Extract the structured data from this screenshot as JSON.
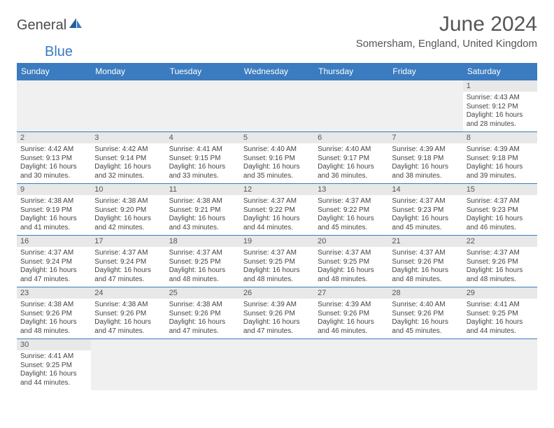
{
  "logo": {
    "part1": "General",
    "part2": "Blue"
  },
  "title": "June 2024",
  "location": "Somersham, England, United Kingdom",
  "colors": {
    "header_bg": "#3b7bbf",
    "header_text": "#ffffff",
    "daynum_bg": "#e8e8e8",
    "empty_bg": "#f0f0f0",
    "border": "#3b7bbf",
    "text": "#444444"
  },
  "weekdays": [
    "Sunday",
    "Monday",
    "Tuesday",
    "Wednesday",
    "Thursday",
    "Friday",
    "Saturday"
  ],
  "first_weekday_index": 6,
  "days": [
    {
      "n": 1,
      "sunrise": "4:43 AM",
      "sunset": "9:12 PM",
      "daylight": "16 hours and 28 minutes."
    },
    {
      "n": 2,
      "sunrise": "4:42 AM",
      "sunset": "9:13 PM",
      "daylight": "16 hours and 30 minutes."
    },
    {
      "n": 3,
      "sunrise": "4:42 AM",
      "sunset": "9:14 PM",
      "daylight": "16 hours and 32 minutes."
    },
    {
      "n": 4,
      "sunrise": "4:41 AM",
      "sunset": "9:15 PM",
      "daylight": "16 hours and 33 minutes."
    },
    {
      "n": 5,
      "sunrise": "4:40 AM",
      "sunset": "9:16 PM",
      "daylight": "16 hours and 35 minutes."
    },
    {
      "n": 6,
      "sunrise": "4:40 AM",
      "sunset": "9:17 PM",
      "daylight": "16 hours and 36 minutes."
    },
    {
      "n": 7,
      "sunrise": "4:39 AM",
      "sunset": "9:18 PM",
      "daylight": "16 hours and 38 minutes."
    },
    {
      "n": 8,
      "sunrise": "4:39 AM",
      "sunset": "9:18 PM",
      "daylight": "16 hours and 39 minutes."
    },
    {
      "n": 9,
      "sunrise": "4:38 AM",
      "sunset": "9:19 PM",
      "daylight": "16 hours and 41 minutes."
    },
    {
      "n": 10,
      "sunrise": "4:38 AM",
      "sunset": "9:20 PM",
      "daylight": "16 hours and 42 minutes."
    },
    {
      "n": 11,
      "sunrise": "4:38 AM",
      "sunset": "9:21 PM",
      "daylight": "16 hours and 43 minutes."
    },
    {
      "n": 12,
      "sunrise": "4:37 AM",
      "sunset": "9:22 PM",
      "daylight": "16 hours and 44 minutes."
    },
    {
      "n": 13,
      "sunrise": "4:37 AM",
      "sunset": "9:22 PM",
      "daylight": "16 hours and 45 minutes."
    },
    {
      "n": 14,
      "sunrise": "4:37 AM",
      "sunset": "9:23 PM",
      "daylight": "16 hours and 45 minutes."
    },
    {
      "n": 15,
      "sunrise": "4:37 AM",
      "sunset": "9:23 PM",
      "daylight": "16 hours and 46 minutes."
    },
    {
      "n": 16,
      "sunrise": "4:37 AM",
      "sunset": "9:24 PM",
      "daylight": "16 hours and 47 minutes."
    },
    {
      "n": 17,
      "sunrise": "4:37 AM",
      "sunset": "9:24 PM",
      "daylight": "16 hours and 47 minutes."
    },
    {
      "n": 18,
      "sunrise": "4:37 AM",
      "sunset": "9:25 PM",
      "daylight": "16 hours and 48 minutes."
    },
    {
      "n": 19,
      "sunrise": "4:37 AM",
      "sunset": "9:25 PM",
      "daylight": "16 hours and 48 minutes."
    },
    {
      "n": 20,
      "sunrise": "4:37 AM",
      "sunset": "9:25 PM",
      "daylight": "16 hours and 48 minutes."
    },
    {
      "n": 21,
      "sunrise": "4:37 AM",
      "sunset": "9:26 PM",
      "daylight": "16 hours and 48 minutes."
    },
    {
      "n": 22,
      "sunrise": "4:37 AM",
      "sunset": "9:26 PM",
      "daylight": "16 hours and 48 minutes."
    },
    {
      "n": 23,
      "sunrise": "4:38 AM",
      "sunset": "9:26 PM",
      "daylight": "16 hours and 48 minutes."
    },
    {
      "n": 24,
      "sunrise": "4:38 AM",
      "sunset": "9:26 PM",
      "daylight": "16 hours and 47 minutes."
    },
    {
      "n": 25,
      "sunrise": "4:38 AM",
      "sunset": "9:26 PM",
      "daylight": "16 hours and 47 minutes."
    },
    {
      "n": 26,
      "sunrise": "4:39 AM",
      "sunset": "9:26 PM",
      "daylight": "16 hours and 47 minutes."
    },
    {
      "n": 27,
      "sunrise": "4:39 AM",
      "sunset": "9:26 PM",
      "daylight": "16 hours and 46 minutes."
    },
    {
      "n": 28,
      "sunrise": "4:40 AM",
      "sunset": "9:26 PM",
      "daylight": "16 hours and 45 minutes."
    },
    {
      "n": 29,
      "sunrise": "4:41 AM",
      "sunset": "9:25 PM",
      "daylight": "16 hours and 44 minutes."
    },
    {
      "n": 30,
      "sunrise": "4:41 AM",
      "sunset": "9:25 PM",
      "daylight": "16 hours and 44 minutes."
    }
  ],
  "labels": {
    "sunrise": "Sunrise:",
    "sunset": "Sunset:",
    "daylight": "Daylight:"
  }
}
